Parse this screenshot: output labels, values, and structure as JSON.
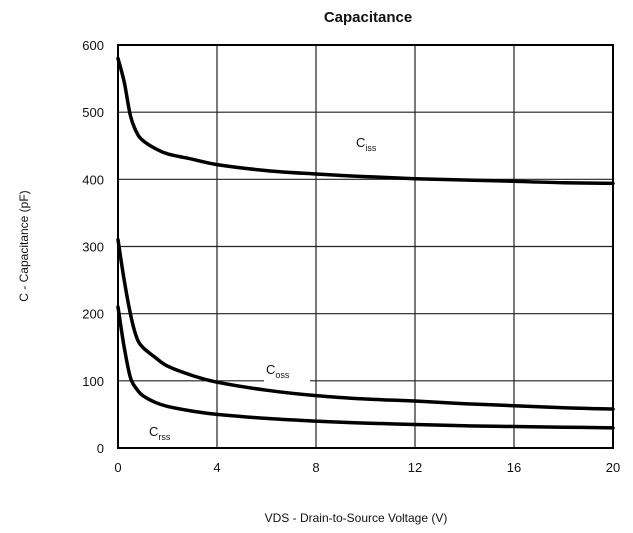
{
  "chart_data": {
    "type": "line",
    "title": "Capacitance",
    "xlabel": "VDS - Drain-to-Source Voltage (V)",
    "ylabel": "C - Capacitance (pF)",
    "xlim": [
      0,
      20
    ],
    "ylim": [
      0,
      600
    ],
    "x_ticks": [
      "0",
      "4",
      "8",
      "12",
      "16",
      "20"
    ],
    "y_ticks": [
      "0",
      "100",
      "200",
      "300",
      "400",
      "500",
      "600"
    ],
    "grid": true,
    "series": [
      {
        "name": "Ciss",
        "x": [
          0,
          0.25,
          0.5,
          0.75,
          1,
          1.5,
          2,
          3,
          4,
          6,
          8,
          10,
          12,
          14,
          16,
          18,
          20
        ],
        "y": [
          580,
          545,
          495,
          470,
          458,
          446,
          438,
          430,
          422,
          413,
          408,
          404,
          401,
          399,
          397,
          395,
          394
        ]
      },
      {
        "name": "Coss",
        "x": [
          0,
          0.25,
          0.5,
          0.75,
          1,
          1.5,
          2,
          3,
          4,
          6,
          8,
          10,
          12,
          14,
          16,
          18,
          20
        ],
        "y": [
          310,
          250,
          200,
          165,
          150,
          135,
          122,
          108,
          98,
          86,
          78,
          73,
          70,
          66,
          63,
          60,
          58
        ]
      },
      {
        "name": "Crss",
        "x": [
          0,
          0.25,
          0.5,
          0.75,
          1,
          1.5,
          2,
          3,
          4,
          6,
          8,
          10,
          12,
          14,
          16,
          18,
          20
        ],
        "y": [
          210,
          150,
          105,
          88,
          78,
          68,
          62,
          55,
          50,
          44,
          40,
          37,
          35,
          33,
          32,
          31,
          30
        ]
      }
    ],
    "curve_labels": [
      {
        "main": "C",
        "sub": "iss"
      },
      {
        "main": "C",
        "sub": "oss"
      },
      {
        "main": "C",
        "sub": "rss"
      }
    ]
  }
}
